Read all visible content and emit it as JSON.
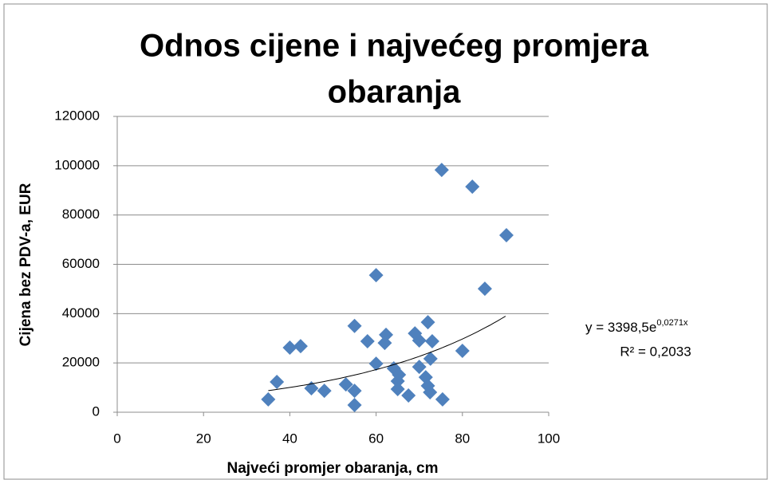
{
  "chart_data": {
    "type": "scatter",
    "title_lines": [
      "Odnos cijene i najvećeg promjera",
      "obaranja"
    ],
    "xlabel": "Najveći promjer obaranja, cm",
    "ylabel": "Cijena bez PDV-a, EUR",
    "color": "#4f81bd",
    "grid": true,
    "xlim": [
      0,
      100
    ],
    "xticks": [
      0,
      20,
      40,
      60,
      80,
      100
    ],
    "ylim": [
      0,
      120000
    ],
    "yticks": [
      0,
      20000,
      40000,
      60000,
      80000,
      100000,
      120000
    ],
    "x": [
      35,
      37,
      40,
      42.5,
      45,
      48,
      53,
      55,
      55,
      55,
      58,
      60,
      60,
      62.3,
      62,
      64.1,
      65.3,
      65,
      65,
      67.5,
      69,
      70,
      70,
      71.5,
      72,
      72.5,
      72.6,
      72,
      73,
      75.2,
      75.4,
      80,
      82.3,
      85.2,
      90.2
    ],
    "values": [
      5200,
      12300,
      26200,
      26800,
      9700,
      8700,
      11300,
      35000,
      8700,
      2900,
      28800,
      55600,
      19700,
      31400,
      28100,
      17800,
      15200,
      12600,
      9400,
      6800,
      32000,
      29100,
      18400,
      14200,
      10700,
      8100,
      21700,
      36500,
      28800,
      98300,
      5200,
      24900,
      91500,
      50100,
      71800
    ],
    "trendline": {
      "a": 3398.5,
      "b": 0.0271,
      "xrange": [
        35,
        90
      ],
      "equation": "y = 3398,5e",
      "exponent": "0,0271x",
      "r2": "R² = 0,2033"
    }
  }
}
